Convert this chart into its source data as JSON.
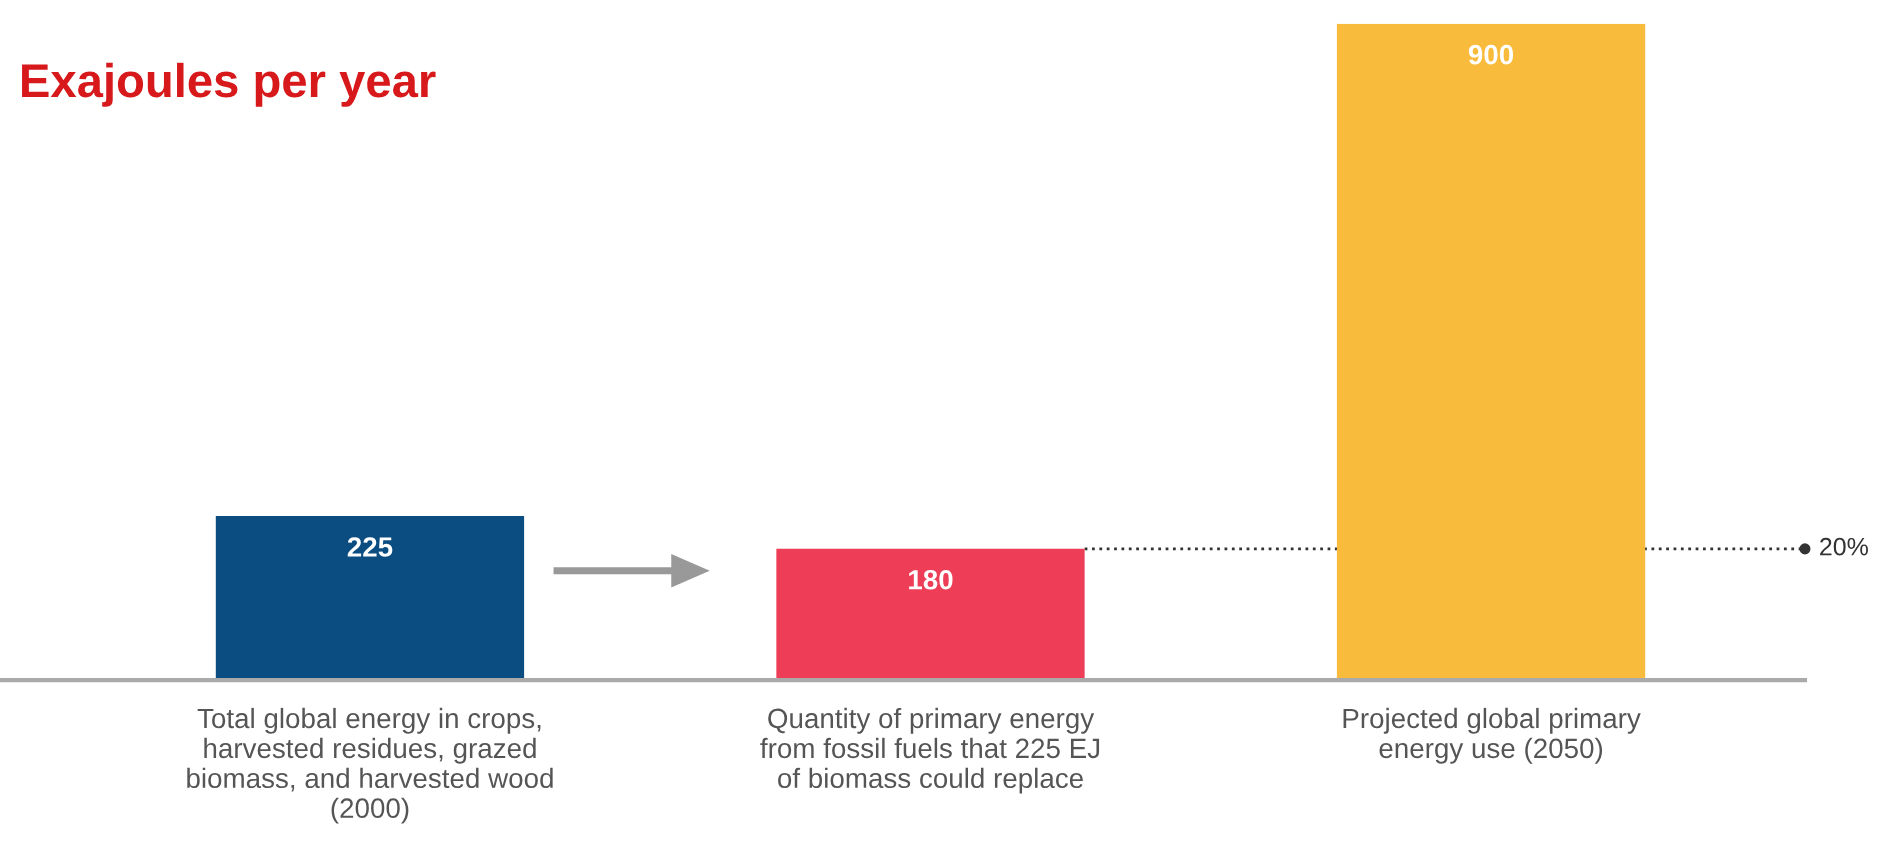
{
  "chart_data": {
    "type": "bar",
    "title": "Exajoules per year",
    "categories": [
      "Total global energy in crops,\nharvested residues, grazed\nbiomass, and harvested wood\n(2000)",
      "Quantity of primary energy\nfrom fossil fuels that 225 EJ\nof biomass could replace",
      "Projected global primary\nenergy use (2050)"
    ],
    "values": [
      225,
      180,
      900
    ],
    "colors": [
      "#0b4d80",
      "#ee3e57",
      "#f9bb3b"
    ],
    "data_labels": true,
    "ref_lines": [
      {
        "axis": "y",
        "value": 180,
        "color": "#333333",
        "line_style": "dotted"
      }
    ],
    "annotations": [
      "20%"
    ]
  }
}
